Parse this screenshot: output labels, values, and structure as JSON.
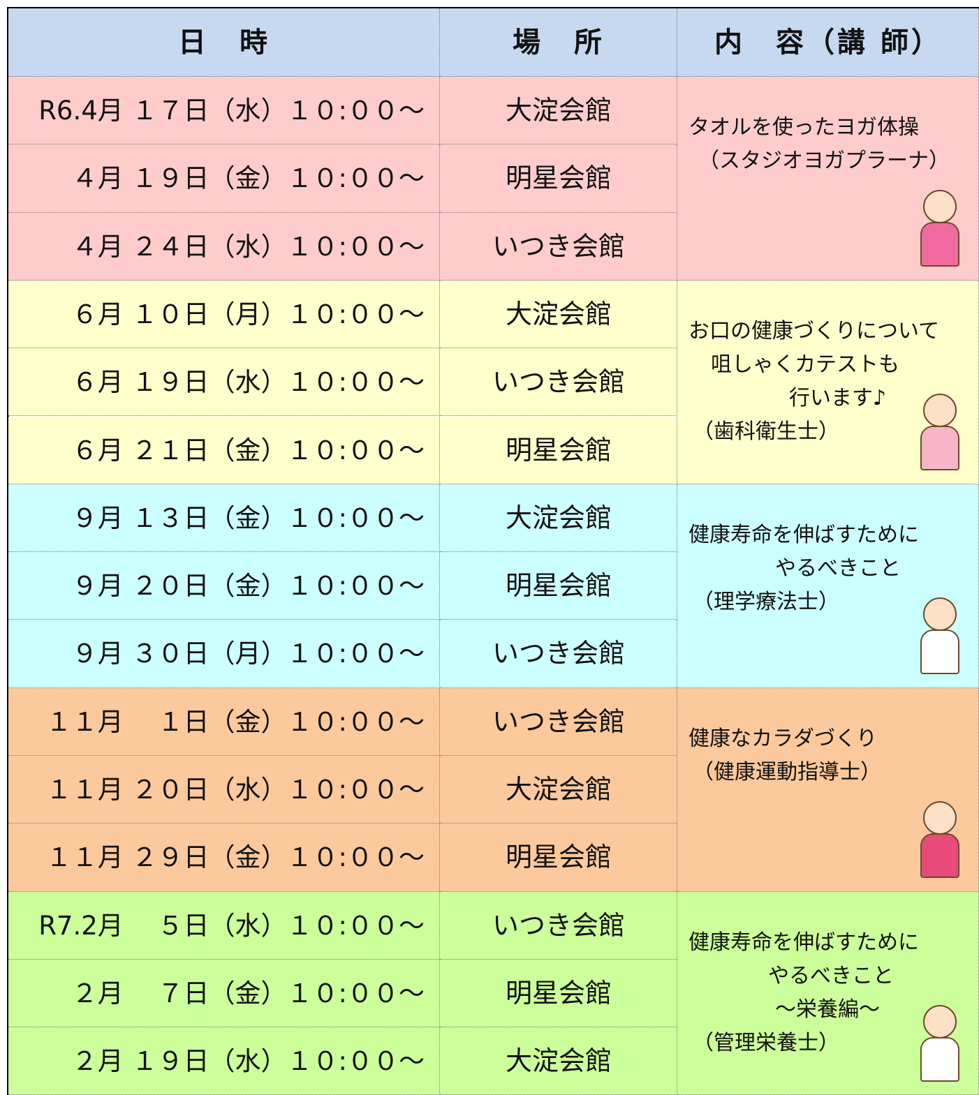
{
  "table": {
    "header": [
      "日　時",
      "場　所",
      "内　容（講 師）"
    ],
    "groups": [
      {
        "color": "#ffcccc",
        "rows": [
          {
            "date": "R6.4月 １７日（水）１０:００～",
            "place": "大淀会館"
          },
          {
            "date": "４月 １９日（金）１０:００～",
            "place": "明星会館"
          },
          {
            "date": "４月 ２４日（水）１０:００～",
            "place": "いつき会館"
          }
        ],
        "content": [
          "タオルを使ったヨガ体操",
          "（スタジオヨガプラーナ）"
        ]
      },
      {
        "color": "#ffffcc",
        "rows": [
          {
            "date": "６月 １０日（月）１０:００～",
            "place": "大淀会館"
          },
          {
            "date": "６月 １９日（水）１０:００～",
            "place": "いつき会館"
          },
          {
            "date": "６月 ２１日（金）１０:００～",
            "place": "明星会館"
          }
        ],
        "content": [
          "お口の健康づくりについて",
          "咀しゃくカテストも",
          "行います♪",
          "（歯科衛生士）"
        ]
      },
      {
        "color": "#ccffff",
        "rows": [
          {
            "date": "９月 １３日（金）１０:００～",
            "place": "大淀会館"
          },
          {
            "date": "９月 ２０日（金）１０:００～",
            "place": "明星会館"
          },
          {
            "date": "９月 ３０日（月）１０:００～",
            "place": "いつき会館"
          }
        ],
        "content": [
          "健康寿命を伸ばすために",
          "やるべきこと",
          "（理学療法士）"
        ]
      },
      {
        "color": "#fcc99c",
        "rows": [
          {
            "date": "１１月　 １日（金）１０:００～",
            "place": "いつき会館"
          },
          {
            "date": "１１月 ２０日（水）１０:００～",
            "place": "大淀会館"
          },
          {
            "date": "１１月 ２９日（金）１０:００～",
            "place": "明星会館"
          }
        ],
        "content": [
          "健康なカラダづくり",
          "（健康運動指導士）"
        ]
      },
      {
        "color": "#ccff99",
        "rows": [
          {
            "date": "R7.2月　 ５日（水）１０:００～",
            "place": "いつき会館"
          },
          {
            "date": "２月　 ７日（金）１０:００～",
            "place": "明星会館"
          },
          {
            "date": "２月 １９日（水）１０:００～",
            "place": "大淀会館"
          }
        ],
        "content": [
          "健康寿命を伸ばすために",
          "やるべきこと",
          "～栄養編～",
          "（管理栄養士）"
        ]
      }
    ]
  }
}
